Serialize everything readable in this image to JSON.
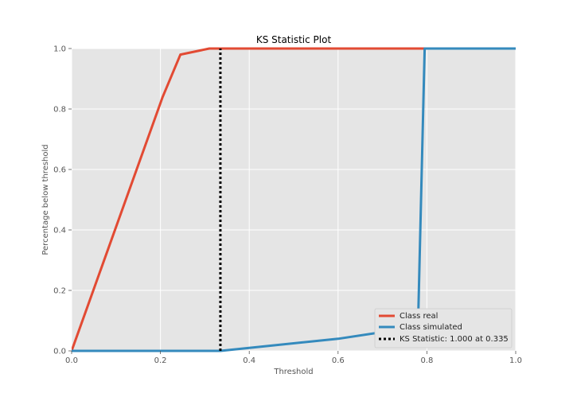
{
  "chart_data": {
    "type": "line",
    "title": "KS Statistic Plot",
    "xlabel": "Threshold",
    "ylabel": "Percentage below threshold",
    "xlim": [
      0,
      1
    ],
    "ylim": [
      0,
      1
    ],
    "xticks": [
      "0.0",
      "0.2",
      "0.4",
      "0.6",
      "0.8",
      "1.0"
    ],
    "yticks": [
      "0.0",
      "0.2",
      "0.4",
      "0.6",
      "0.8",
      "1.0"
    ],
    "grid": true,
    "legend_position": "bottom-right",
    "series": [
      {
        "name": "Class real",
        "color": "#e24a33",
        "x": [
          0.0,
          0.205,
          0.245,
          0.31,
          0.335,
          1.0
        ],
        "y": [
          0.0,
          0.84,
          0.98,
          1.0,
          1.0,
          1.0
        ]
      },
      {
        "name": "Class simulated",
        "color": "#348abd",
        "x": [
          0.0,
          0.335,
          0.4,
          0.6,
          0.78,
          0.795,
          1.0
        ],
        "y": [
          0.0,
          0.0,
          0.01,
          0.04,
          0.08,
          1.0,
          1.0
        ]
      }
    ],
    "ks_line": {
      "label": "KS Statistic: 1.000 at 0.335",
      "x": 0.335,
      "y_start": 0.0,
      "y_end": 1.0,
      "color": "#000000"
    }
  }
}
